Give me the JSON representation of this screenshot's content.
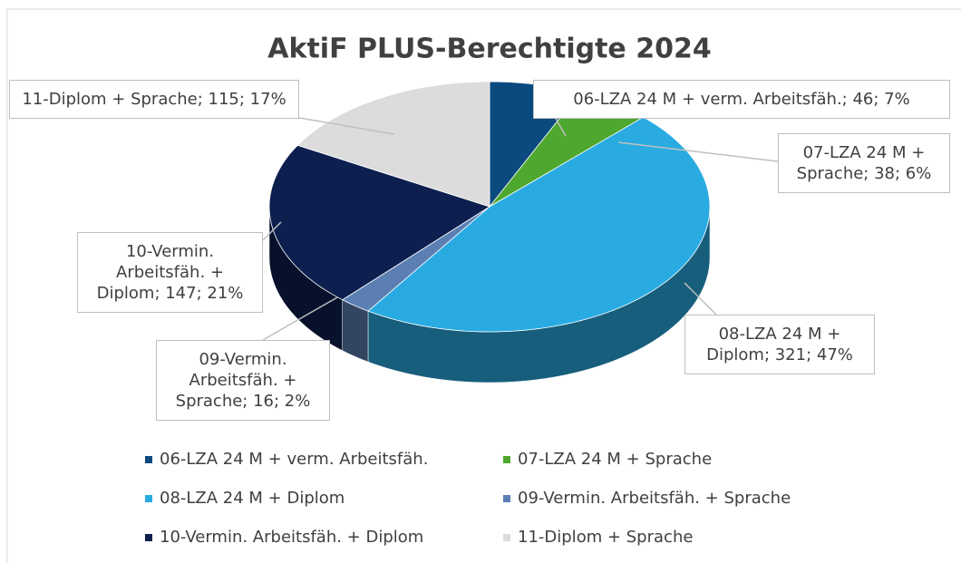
{
  "chart_data": {
    "type": "pie",
    "title": "AktiF PLUS-Berechtigte 2024",
    "categories": [
      "06-LZA 24 M + verm. Arbeitsfäh.",
      "07-LZA 24 M + Sprache",
      "08-LZA 24 M + Diplom",
      "09-Vermin. Arbeitsfäh. + Sprache",
      "10-Vermin. Arbeitsfäh. + Diplom",
      "11-Diplom + Sprache"
    ],
    "values": [
      46,
      38,
      321,
      16,
      147,
      115
    ],
    "value_labels": [
      "06-LZA 24 M + verm. Arbeitsfäh.; 46; 7%",
      "07-LZA 24 M + Sprache; 38; 6%",
      "08-LZA 24 M + Diplom; 321; 47%",
      "09-Vermin. Arbeitsfäh. + Sprache; 16; 2%",
      "10-Vermin. Arbeitsfäh. + Diplom; 147; 21%",
      "11-Diplom + Sprache; 115; 17%"
    ],
    "colors": [
      "#0b4a7e",
      "#4ea72e",
      "#29abe2",
      "#5b7fb3",
      "#0c1f4f",
      "#dcdcdc"
    ],
    "legend": "bottom"
  }
}
